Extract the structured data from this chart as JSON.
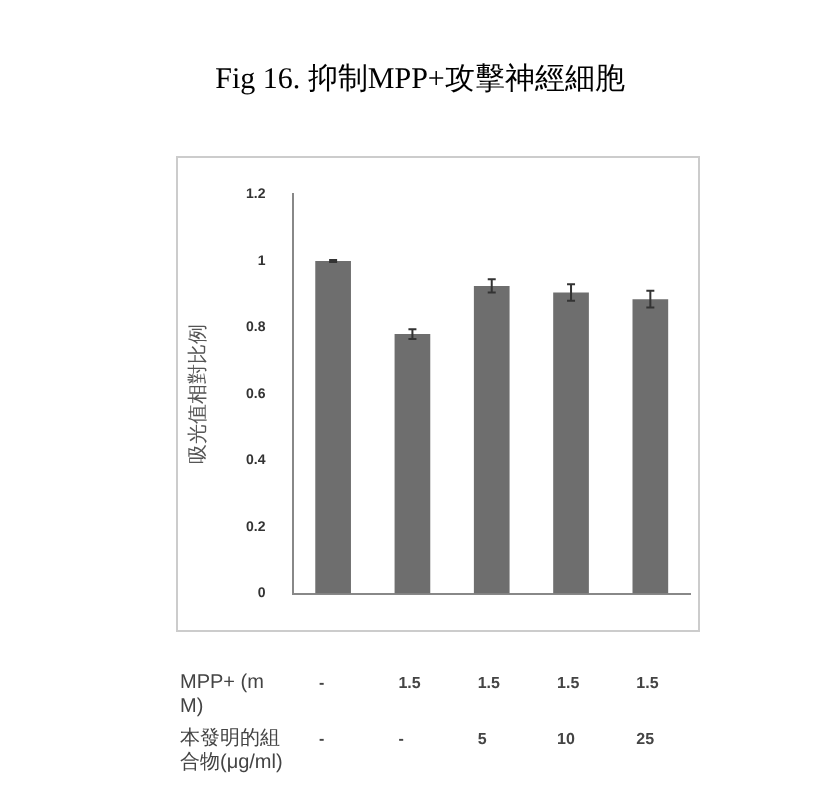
{
  "chart_data": {
    "type": "bar",
    "title": "Fig 16. 抑制MPP+攻擊神經細胞",
    "ylabel": "吸光值相對比例",
    "categories": [
      null,
      null,
      null,
      null,
      null
    ],
    "values": [
      1.0,
      0.78,
      0.925,
      0.905,
      0.885
    ],
    "errors": [
      0.003,
      0.015,
      0.02,
      0.025,
      0.025
    ],
    "color": "#6e6e6e",
    "ylim": [
      0,
      1.2
    ],
    "yticks": [
      0,
      0.2,
      0.4,
      0.6,
      0.8,
      1,
      1.2
    ],
    "annotations": [
      "MPP+ (mM)",
      "-",
      "1.5",
      "1.5",
      "1.5",
      "1.5",
      "本發明的組合物(μg/ml)",
      "-",
      "-",
      "5",
      "10",
      "25"
    ]
  }
}
